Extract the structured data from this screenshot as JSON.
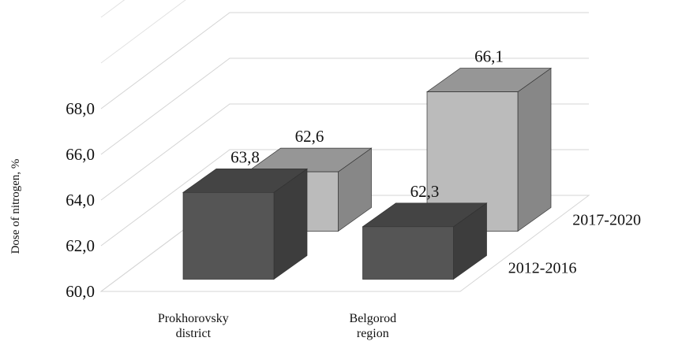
{
  "chart_data": {
    "type": "bar",
    "title": "",
    "xlabel": "",
    "ylabel": "Dose of nitrogen, %",
    "ylim": [
      60,
      68
    ],
    "yticks": [
      "60,0",
      "62,0",
      "64,0",
      "66,0",
      "68,0"
    ],
    "categories": [
      {
        "line1": "Prokhorovsky",
        "line2": "district"
      },
      {
        "line1": "Belgorod",
        "line2": "region"
      }
    ],
    "series": [
      {
        "name": "2012-2016",
        "values": [
          63.8,
          62.3
        ],
        "labels": [
          "63,8",
          "62,3"
        ],
        "color": "#555555"
      },
      {
        "name": "2017-2020",
        "values": [
          62.6,
          66.1
        ],
        "labels": [
          "62,6",
          "66,1"
        ],
        "color": "#bbbbbb"
      }
    ],
    "grid": true,
    "style": "3d-columns"
  }
}
